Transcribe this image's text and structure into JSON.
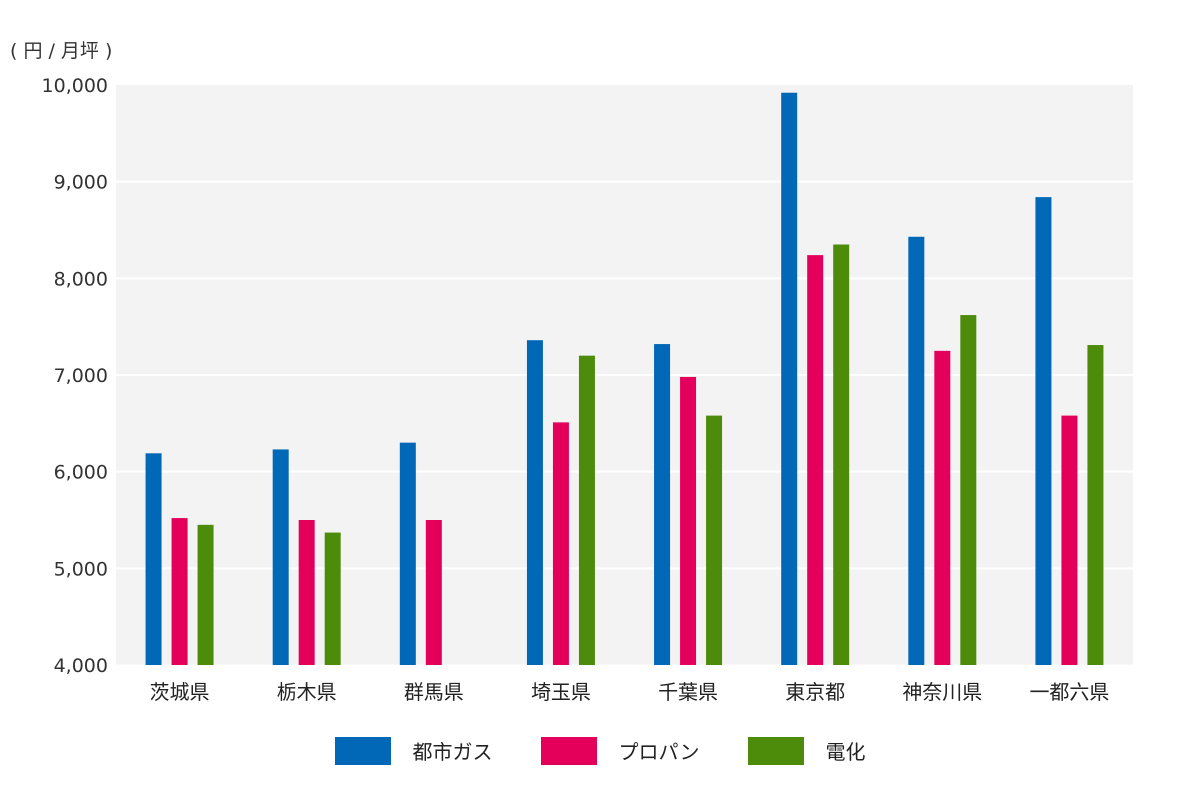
{
  "chart_data": {
    "type": "bar",
    "unit_label": "( 円 / 月坪 )",
    "categories": [
      "茨城県",
      "栃木県",
      "群馬県",
      "埼玉県",
      "千葉県",
      "東京都",
      "神奈川県",
      "一都六県"
    ],
    "series": [
      {
        "name": "都市ガス",
        "color": "#0068b7",
        "values": [
          6190,
          6230,
          6300,
          7360,
          7320,
          9920,
          8430,
          8840
        ]
      },
      {
        "name": "プロパン",
        "color": "#e4005a",
        "values": [
          5520,
          5500,
          5500,
          6510,
          6980,
          8240,
          7250,
          6580
        ]
      },
      {
        "name": "電化",
        "color": "#4d8c0a",
        "values": [
          5450,
          5370,
          null,
          7200,
          6580,
          8350,
          7620,
          7310
        ]
      }
    ],
    "ylim": [
      4000,
      10000
    ],
    "yticks": [
      "4,000",
      "5,000",
      "6,000",
      "7,000",
      "8,000",
      "9,000",
      "10,000"
    ],
    "ytick_values": [
      4000,
      5000,
      6000,
      7000,
      8000,
      9000,
      10000
    ],
    "grid": true,
    "legend_position": "bottom-center",
    "plot_background": "#f3f3f3",
    "grid_color": "#ffffff"
  }
}
